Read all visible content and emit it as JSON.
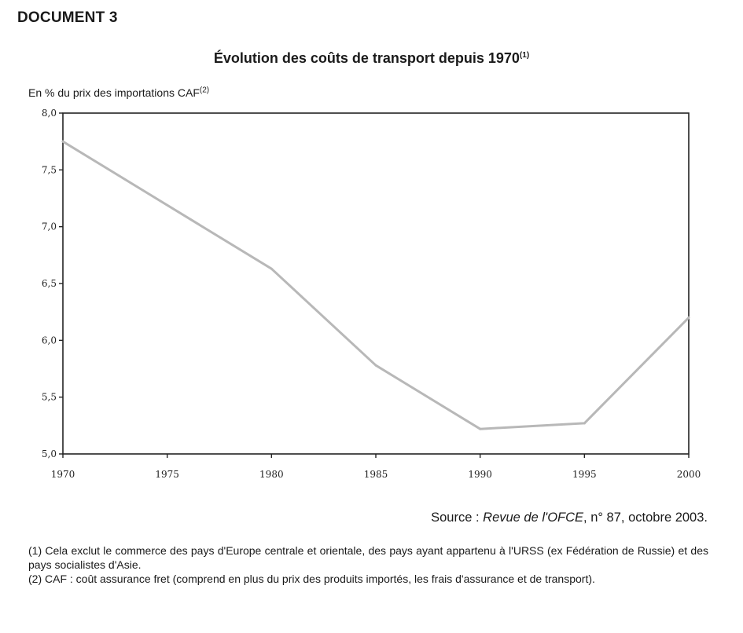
{
  "document_label": "DOCUMENT 3",
  "title": {
    "text": "Évolution des coûts de transport depuis 1970",
    "note_ref": "(1)"
  },
  "unit_label": {
    "text": "En % du prix des importations CAF",
    "note_ref": "(2)"
  },
  "source": {
    "prefix": "Source : ",
    "publication": "Revue de l'OFCE",
    "suffix": ", n° 87, octobre 2003."
  },
  "notes": [
    "(1) Cela exclut le commerce des pays d'Europe centrale et orientale, des pays ayant appartenu à l'URSS (ex Fédération de Russie) et des pays socialistes d'Asie.",
    "(2) CAF : coût assurance fret (comprend en plus du prix des produits importés, les frais d'assurance et de transport)."
  ],
  "colors": {
    "line": "#b8b8b8",
    "axis": "#222222"
  },
  "chart_data": {
    "type": "line",
    "title": "Évolution des coûts de transport depuis 1970",
    "ylabel": "En % du prix des importations CAF",
    "xlabel": "",
    "x": [
      1970,
      1980,
      1985,
      1990,
      1995,
      2000
    ],
    "series": [
      {
        "values": [
          7.75,
          6.63,
          5.78,
          5.22,
          5.27,
          6.2
        ]
      }
    ],
    "xlim": [
      1970,
      2000
    ],
    "ylim": [
      5.0,
      8.0
    ],
    "x_ticks": [
      1970,
      1975,
      1980,
      1985,
      1990,
      1995,
      2000
    ],
    "x_tick_labels": [
      "1970",
      "1975",
      "1980",
      "1985",
      "1990",
      "1995",
      "2000"
    ],
    "y_ticks": [
      5.0,
      5.5,
      6.0,
      6.5,
      7.0,
      7.5,
      8.0
    ],
    "y_tick_labels": [
      "5,0",
      "5,5",
      "6,0",
      "6,5",
      "7,0",
      "7,5",
      "8,0"
    ],
    "grid": false,
    "legend": "none"
  }
}
